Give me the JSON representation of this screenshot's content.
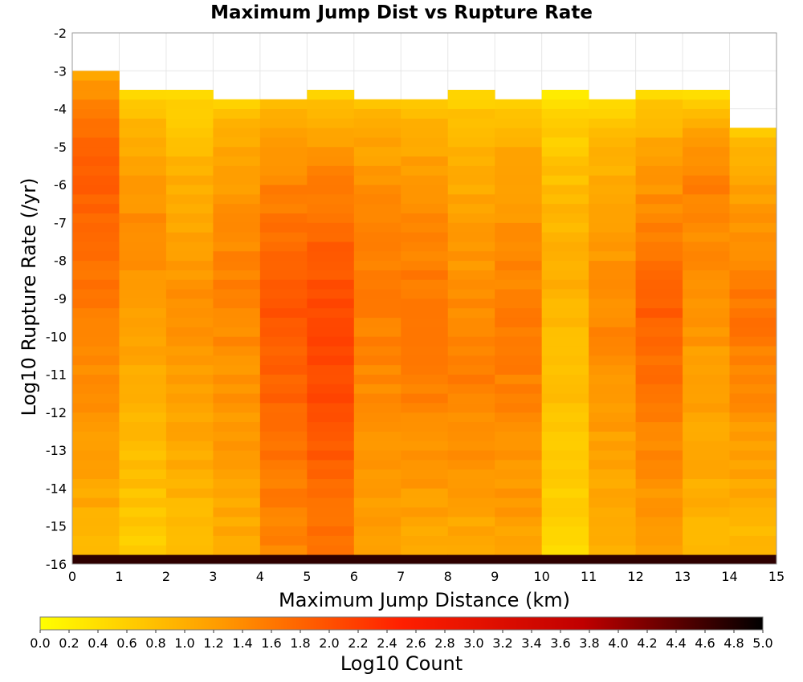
{
  "chart_data": {
    "type": "heatmap",
    "title": "Maximum Jump Dist vs Rupture Rate",
    "xlabel": "Maximum Jump Distance (km)",
    "ylabel": "Log10 Rupture Rate (/yr)",
    "colorbar_label": "Log10 Count",
    "xlim": [
      0,
      15
    ],
    "ylim": [
      -16,
      -2
    ],
    "x_ticks": [
      "0",
      "1",
      "2",
      "3",
      "4",
      "5",
      "6",
      "7",
      "8",
      "9",
      "10",
      "11",
      "12",
      "13",
      "14",
      "15"
    ],
    "y_ticks": [
      "-2",
      "-3",
      "-4",
      "-5",
      "-6",
      "-7",
      "-8",
      "-9",
      "-10",
      "-11",
      "-12",
      "-13",
      "-14",
      "-15",
      "-16"
    ],
    "colorbar_range": [
      0,
      5
    ],
    "colorbar_ticks": [
      "0.0",
      "0.2",
      "0.4",
      "0.6",
      "0.8",
      "1.0",
      "1.2",
      "1.4",
      "1.6",
      "1.8",
      "2.0",
      "2.2",
      "2.4",
      "2.6",
      "2.8",
      "3.0",
      "3.2",
      "3.4",
      "3.6",
      "3.8",
      "4.0",
      "4.2",
      "4.4",
      "4.6",
      "4.8",
      "5.0"
    ],
    "colormap": [
      "#ffff00",
      "#ff9a00",
      "#ff1f00",
      "#c00000",
      "#000000"
    ],
    "x_bin_width_km": 1,
    "y_bin_width": 0.25,
    "y_bottom_bin": -16,
    "columns": [
      {
        "x": 0,
        "top": -3.0,
        "top_value": 0.9,
        "peak": 1.9,
        "peak_at": -5.5,
        "bottom_value": 0.9,
        "bottom_row_value": 4.7
      },
      {
        "x": 1,
        "top": -3.6,
        "top_value": 0.5,
        "peak": 1.4,
        "peak_at": -7.0,
        "bottom_value": 0.6,
        "bottom_row_value": 4.7
      },
      {
        "x": 2,
        "top": -3.6,
        "top_value": 0.3,
        "peak": 1.35,
        "peak_at": -9.0,
        "bottom_value": 0.8,
        "bottom_row_value": 4.7
      },
      {
        "x": 3,
        "top": -3.85,
        "top_value": 0.6,
        "peak": 1.5,
        "peak_at": -8.5,
        "bottom_value": 1.0,
        "bottom_row_value": 4.7
      },
      {
        "x": 4,
        "top": -3.85,
        "top_value": 0.7,
        "peak": 1.95,
        "peak_at": -9.5,
        "bottom_value": 1.4,
        "bottom_row_value": 4.7
      },
      {
        "x": 5,
        "top": -3.6,
        "top_value": 0.4,
        "peak": 2.2,
        "peak_at": -10.0,
        "bottom_value": 1.55,
        "bottom_row_value": 4.7
      },
      {
        "x": 6,
        "top": -3.85,
        "top_value": 0.7,
        "peak": 1.6,
        "peak_at": -8.5,
        "bottom_value": 1.1,
        "bottom_row_value": 4.7
      },
      {
        "x": 7,
        "top": -3.85,
        "top_value": 0.6,
        "peak": 1.7,
        "peak_at": -10.0,
        "bottom_value": 1.0,
        "bottom_row_value": 4.7
      },
      {
        "x": 8,
        "top": -3.6,
        "top_value": 0.4,
        "peak": 1.55,
        "peak_at": -11.0,
        "bottom_value": 1.0,
        "bottom_row_value": 4.7
      },
      {
        "x": 9,
        "top": -3.85,
        "top_value": 0.6,
        "peak": 1.6,
        "peak_at": -10.0,
        "bottom_value": 1.1,
        "bottom_row_value": 4.7
      },
      {
        "x": 10,
        "top": -3.6,
        "top_value": 0.25,
        "peak": 1.0,
        "peak_at": -8.0,
        "bottom_value": 0.5,
        "bottom_row_value": 4.7
      },
      {
        "x": 11,
        "top": -3.85,
        "top_value": 0.4,
        "peak": 1.45,
        "peak_at": -9.5,
        "bottom_value": 0.9,
        "bottom_row_value": 4.7
      },
      {
        "x": 12,
        "top": -3.6,
        "top_value": 0.35,
        "peak": 1.85,
        "peak_at": -9.5,
        "bottom_value": 1.1,
        "bottom_row_value": 4.7
      },
      {
        "x": 13,
        "top": -3.6,
        "top_value": 0.3,
        "peak": 1.5,
        "peak_at": -6.0,
        "bottom_value": 0.9,
        "bottom_row_value": 4.7
      },
      {
        "x": 14,
        "top": -4.45,
        "top_value": 0.5,
        "peak": 1.65,
        "peak_at": -9.5,
        "bottom_value": 0.8,
        "bottom_row_value": 4.7
      }
    ]
  }
}
